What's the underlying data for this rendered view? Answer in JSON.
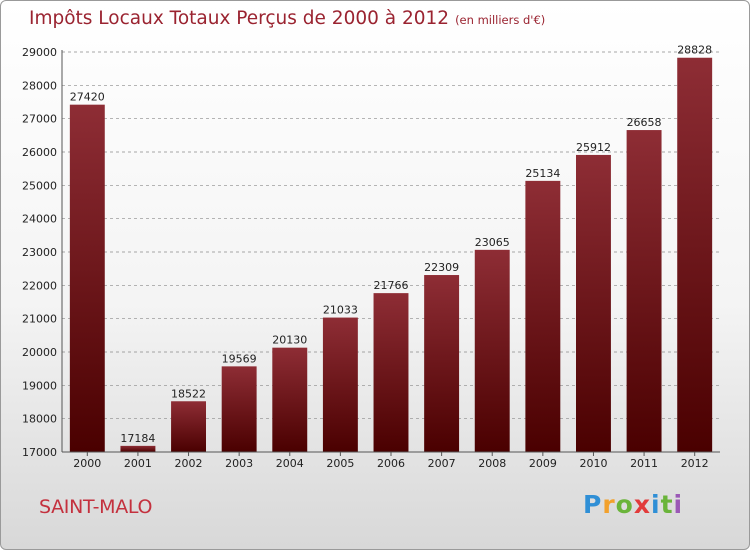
{
  "header": {
    "title": "Impôts Locaux Totaux Perçus de 2000 à 2012",
    "subtitle": "(en milliers d'€)"
  },
  "footer": {
    "place": "SAINT-MALO",
    "logo_letters": [
      "P",
      "r",
      "o",
      "x",
      "i",
      "t",
      "i"
    ],
    "logo_colors": [
      "#2f8fd6",
      "#f2a12c",
      "#6ab43a",
      "#e23b3b",
      "#2f8fd6",
      "#6ab43a",
      "#9b59b6"
    ]
  },
  "colors": {
    "bar_top": "#8e2d35",
    "bar_bottom": "#4a0000",
    "grid": "#8a8a8a",
    "axis": "#555555"
  },
  "chart_data": {
    "type": "bar",
    "title": "Impôts Locaux Totaux Perçus de 2000 à 2012",
    "xlabel": "",
    "ylabel": "",
    "categories": [
      "2000",
      "2001",
      "2002",
      "2003",
      "2004",
      "2005",
      "2006",
      "2007",
      "2008",
      "2009",
      "2010",
      "2011",
      "2012"
    ],
    "values": [
      27420,
      17184,
      18522,
      19569,
      20130,
      21033,
      21766,
      22309,
      23065,
      25134,
      25912,
      26658,
      28828
    ],
    "ylim": [
      17000,
      29000
    ],
    "yticks": [
      17000,
      18000,
      19000,
      20000,
      21000,
      22000,
      23000,
      24000,
      25000,
      26000,
      27000,
      28000,
      29000
    ],
    "grid": true
  }
}
